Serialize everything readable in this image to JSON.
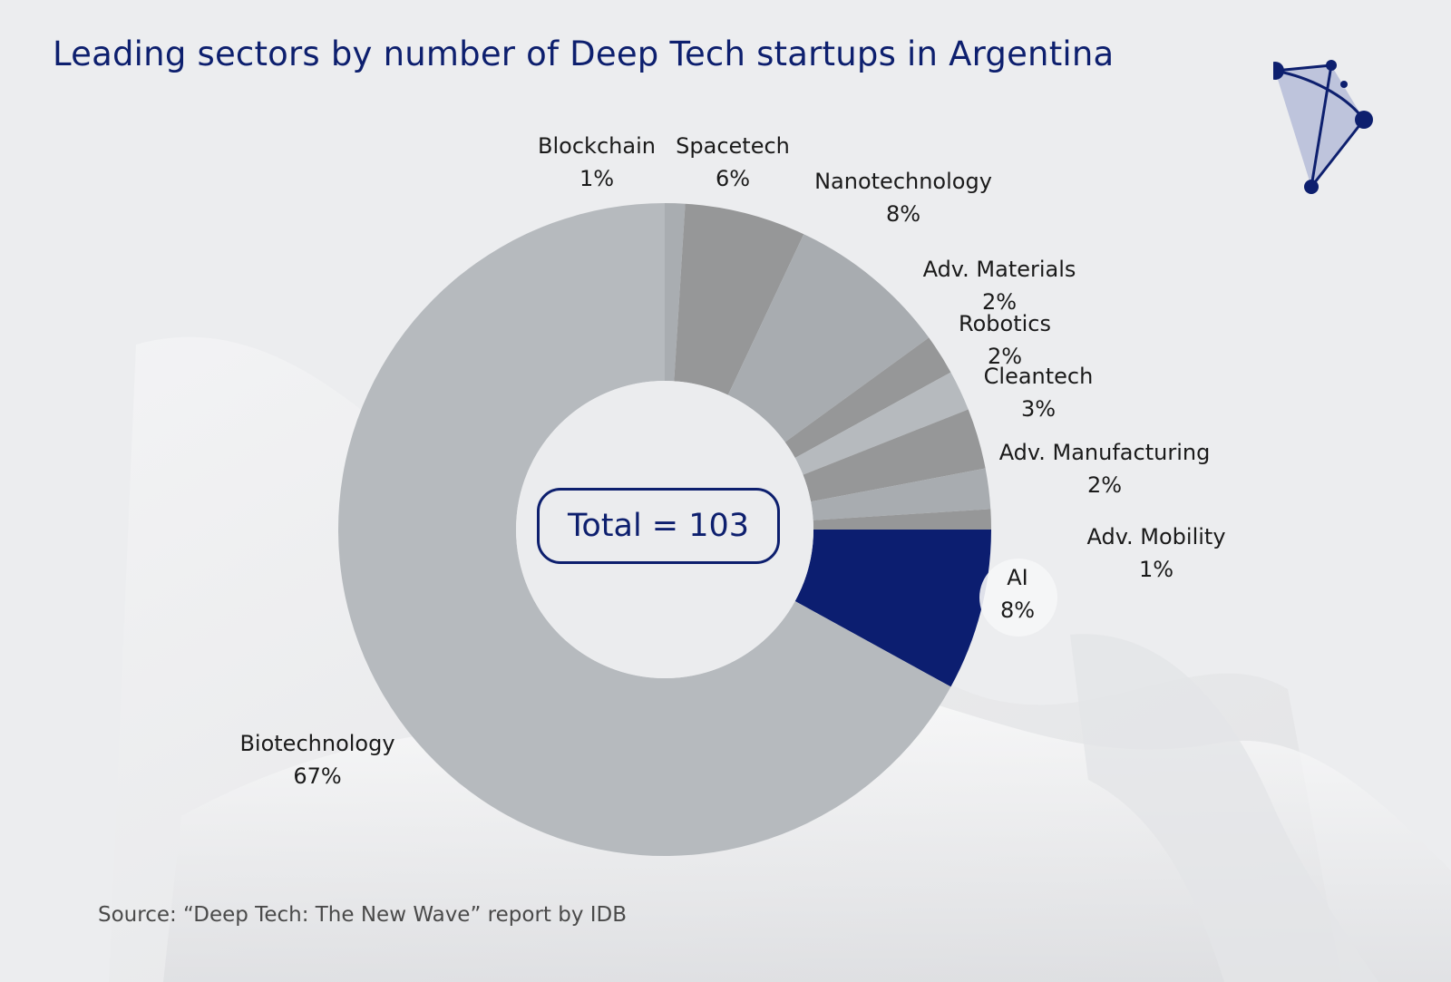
{
  "chart_data": {
    "type": "pie",
    "variant": "donut",
    "title": "Leading sectors by number of Deep Tech startups in Argentina",
    "center_label": "Total = 103",
    "total": 103,
    "slices": [
      {
        "name": "Blockchain",
        "value": 1,
        "label": "1%",
        "color": "#a9adb1"
      },
      {
        "name": "Spacetech",
        "value": 6,
        "label": "6%",
        "color": "#969798"
      },
      {
        "name": "Nanotechnology",
        "value": 8,
        "label": "8%",
        "color": "#a8acb0"
      },
      {
        "name": "Adv. Materials",
        "value": 2,
        "label": "2%",
        "color": "#969798"
      },
      {
        "name": "Robotics",
        "value": 2,
        "label": "2%",
        "color": "#b6babe"
      },
      {
        "name": "Cleantech",
        "value": 3,
        "label": "3%",
        "color": "#969798"
      },
      {
        "name": "Adv. Manufacturing",
        "value": 2,
        "label": "2%",
        "color": "#a8acb0"
      },
      {
        "name": "Adv. Mobility",
        "value": 1,
        "label": "1%",
        "color": "#969798"
      },
      {
        "name": "AI",
        "value": 8,
        "label": "8%",
        "color": "#0c1e70"
      },
      {
        "name": "Biotechnology",
        "value": 67,
        "label": "67%",
        "color": "#b6babe"
      }
    ],
    "source": "Source: “Deep Tech: The New Wave” report by IDB"
  },
  "colors": {
    "title": "#0d1f6e",
    "accent": "#0c1e70",
    "background": "#ecedef"
  }
}
